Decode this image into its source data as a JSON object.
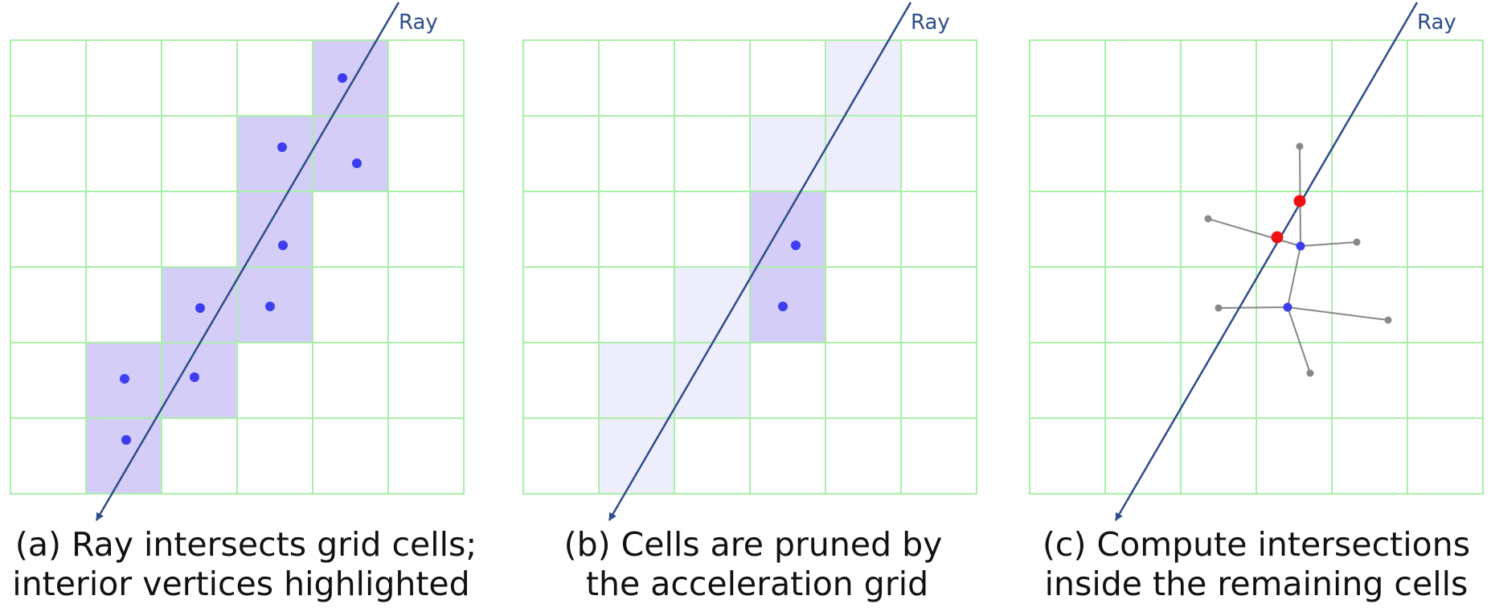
{
  "panels": [
    {
      "ray_label": "Ray",
      "caption": [
        "(a) Ray intersects grid cells;",
        "interior vertices highlighted"
      ]
    },
    {
      "ray_label": "Ray",
      "caption": [
        "(b) Cells are pruned by",
        "the acceleration grid"
      ]
    },
    {
      "ray_label": "Ray",
      "caption": [
        "(c) Compute intersections",
        "inside the remaining cells"
      ]
    }
  ],
  "colors": {
    "grid_line": "#a8f0a8",
    "active_cell": "#d4cdf8",
    "pruned_cell": "#eeedfb",
    "vertex": "#3d3df0",
    "ray": "#2e4d8a",
    "edge": "#888888",
    "intersection": "#ee1111"
  }
}
